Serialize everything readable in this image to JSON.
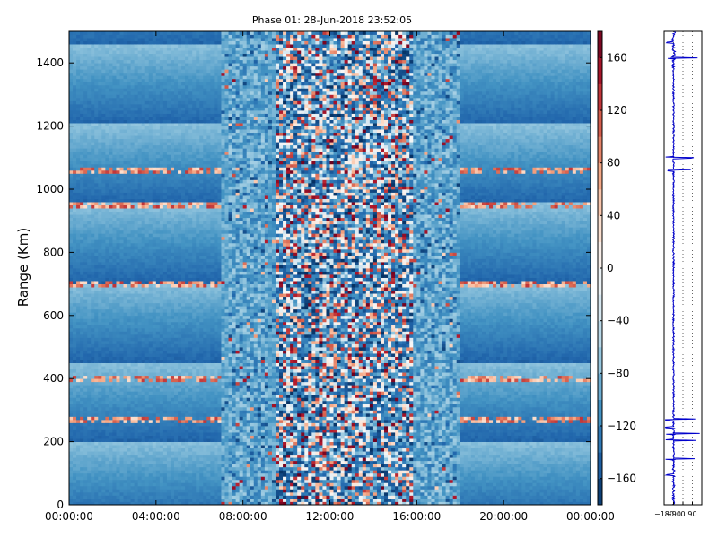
{
  "chart_data": [
    {
      "type": "heatmap",
      "title": "Phase 01: 28-Jun-2018 23:52:05",
      "xlabel": "",
      "ylabel": "Range (Km)",
      "x_ticks": [
        "00:00:00",
        "04:00:00",
        "08:00:00",
        "12:00:00",
        "16:00:00",
        "20:00:00",
        "00:00:00"
      ],
      "x_tick_hours": [
        0,
        4,
        8,
        12,
        16,
        20,
        24
      ],
      "xlim_hours": [
        0,
        24
      ],
      "y_ticks": [
        0,
        200,
        400,
        600,
        800,
        1000,
        1200,
        1400
      ],
      "ylim": [
        0,
        1500
      ],
      "colorbar": {
        "colormap": "RdBu_r",
        "range": [
          -180,
          180
        ],
        "ticks": [
          -160,
          -120,
          -80,
          -40,
          0,
          40,
          80,
          120,
          160
        ],
        "tick_labels": [
          "−160",
          "−120",
          "−80",
          "−40",
          "0",
          "40",
          "80",
          "120",
          "160"
        ]
      },
      "regions": {
        "quiet_hours": [
          [
            0,
            7
          ],
          [
            18,
            24
          ]
        ],
        "noisy_hours": [
          [
            9.5,
            15.8
          ]
        ],
        "quiet_level": -110,
        "noisy_level_range": [
          -180,
          180
        ]
      },
      "bright_rows_km": [
        950,
        700,
        1060,
        400,
        270
      ]
    },
    {
      "type": "line",
      "xlim": [
        -180,
        180
      ],
      "ylim": [
        0,
        1500
      ],
      "x_ticks": [
        -180,
        -90,
        0,
        90
      ],
      "x_tick_labels": [
        "−180",
        "−90",
        "0",
        "90"
      ],
      "grid": true,
      "baseline": -90,
      "spikes_km": [
        1465,
        1415,
        1100,
        1060,
        270,
        245,
        225,
        205,
        145,
        95
      ]
    }
  ]
}
